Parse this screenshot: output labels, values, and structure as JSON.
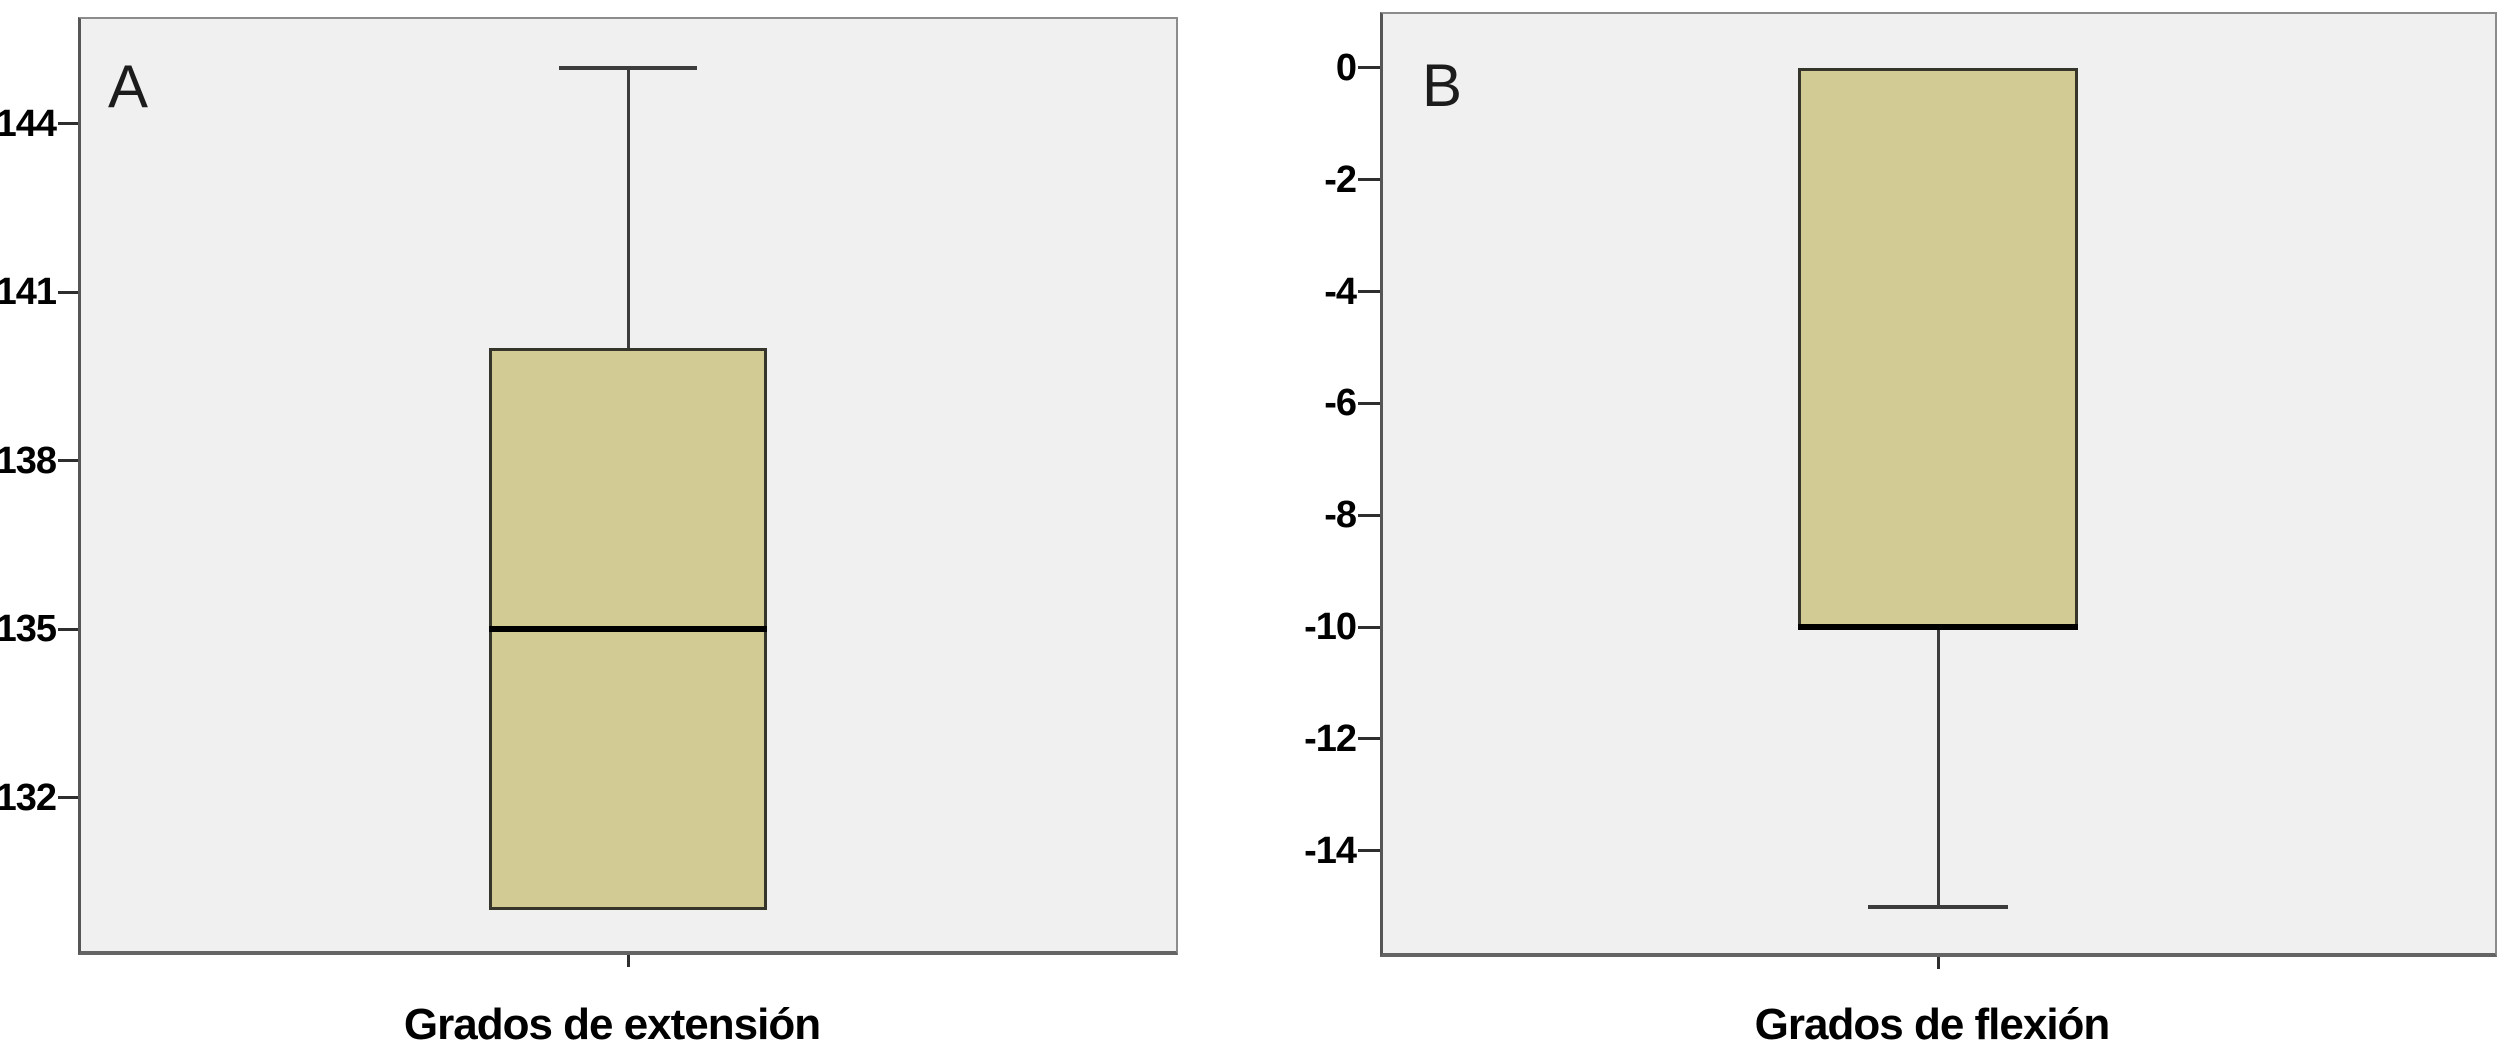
{
  "figure": {
    "description": "Two SPSS-style box plots side by side",
    "panel_letters": [
      "A",
      "B"
    ]
  },
  "colors": {
    "page_bg": "#ffffff",
    "plot_bg": "#f0f0f0",
    "frame": "#8c8c8c",
    "axis_dark": "#565656",
    "box_fill": "#d2cb94",
    "box_border": "#35352b",
    "median": "#000000",
    "whisker": "#3c3c3c",
    "tick": "#2e2e2e",
    "text": "#000000"
  },
  "chart_data": [
    {
      "type": "boxplot",
      "panel_label": "A",
      "category": "Grados de extensión",
      "values": {
        "whisker_low": 130,
        "q1": 130,
        "median": 135,
        "q3": 140,
        "whisker_high": 145
      },
      "yticks": [
        144,
        141,
        138,
        135,
        132
      ],
      "ylim": [
        129.2,
        145.9
      ],
      "grid": false,
      "legend": "none"
    },
    {
      "type": "boxplot",
      "panel_label": "B",
      "category": "Grados de flexión",
      "values": {
        "whisker_low": -15,
        "q1": -10,
        "median": -10,
        "q3": 0,
        "whisker_high": 0
      },
      "yticks": [
        0,
        -2,
        -4,
        -6,
        -8,
        -10,
        -12,
        -14
      ],
      "ylim": [
        -15.9,
        1.0
      ],
      "grid": false,
      "legend": "none"
    }
  ]
}
